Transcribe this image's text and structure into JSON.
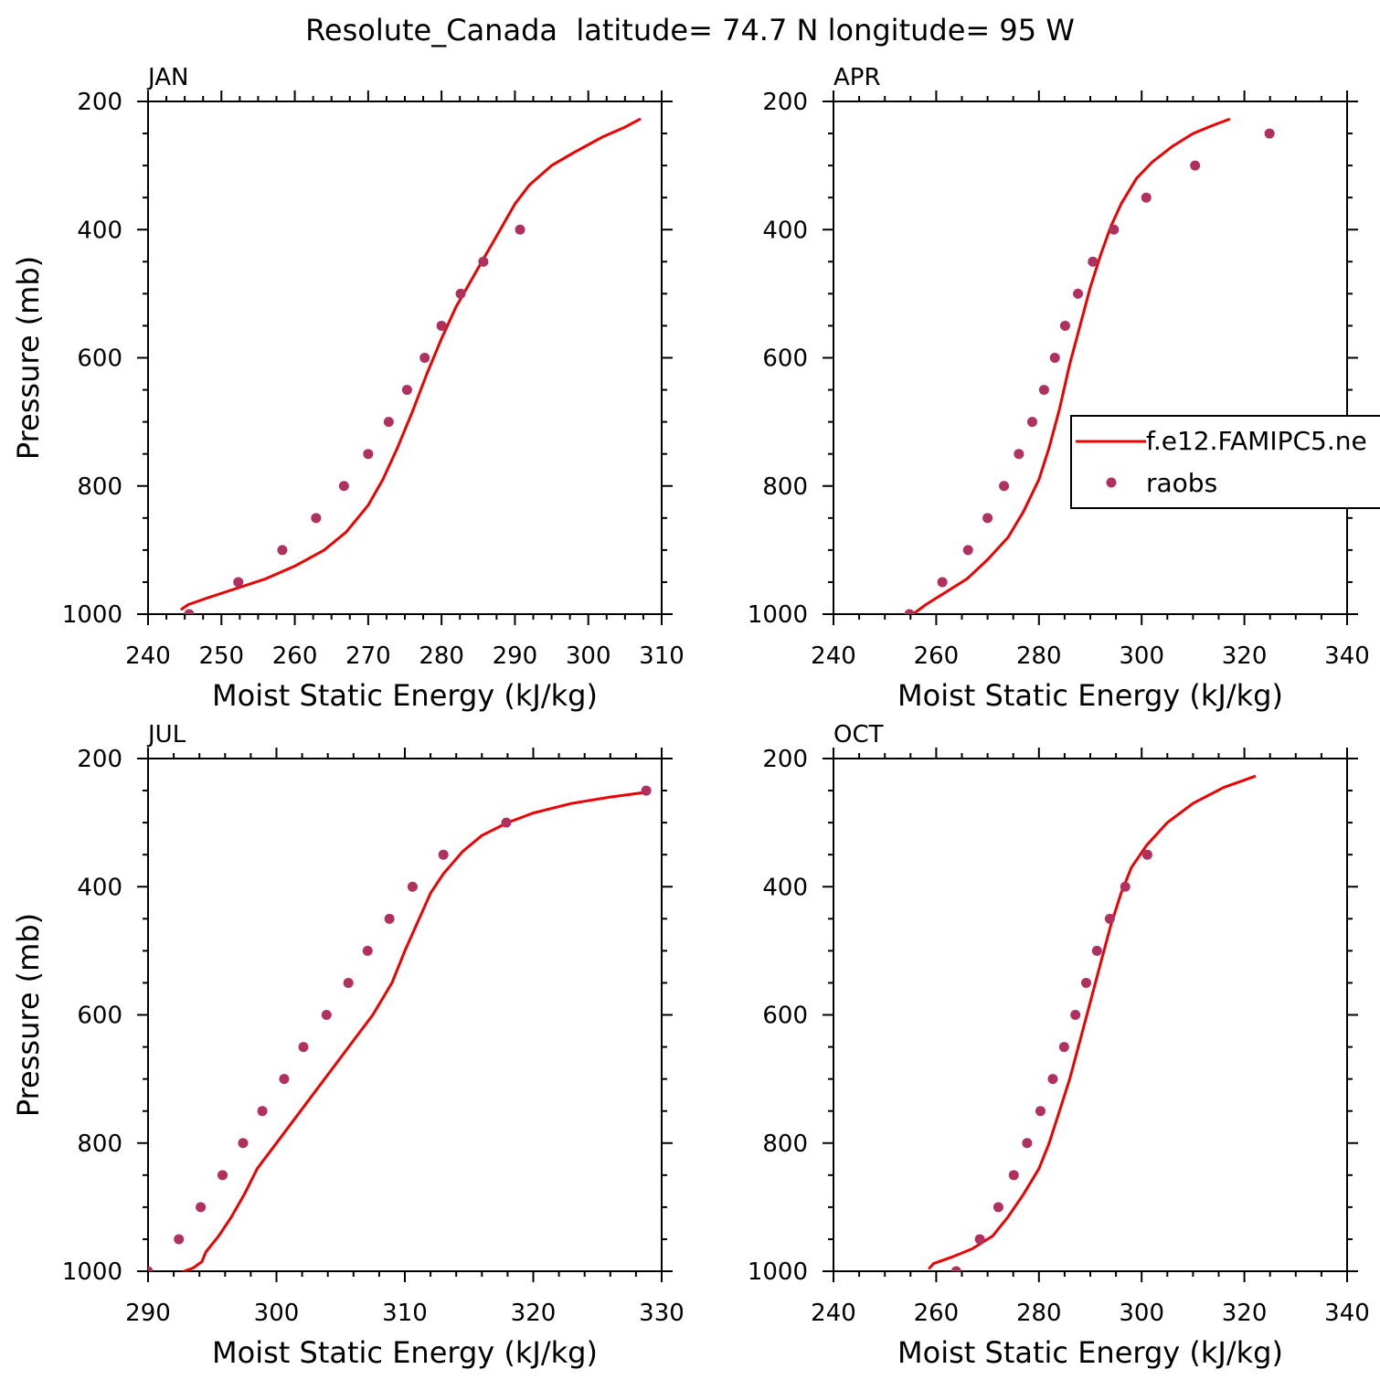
{
  "figure": {
    "title": "Resolute_Canada  latitude= 74.7 N longitude= 95 W",
    "legend": {
      "placement": "right-middle",
      "entries": [
        {
          "label": "f.e12.FAMIPC5.ne",
          "style": "line",
          "color": "#ee0000"
        },
        {
          "label": "raobs",
          "style": "marker",
          "color": "#b03060"
        }
      ]
    }
  },
  "colors": {
    "model_line": "#ee0000",
    "obs_marker": "#b03060",
    "axis": "#000000"
  },
  "chart_data": [
    {
      "type": "line",
      "panel_label": "JAN",
      "xlabel": "Moist Static Energy (kJ/kg)",
      "ylabel": "Pressure (mb)",
      "xlim": [
        240,
        310
      ],
      "ylim": [
        1000,
        200
      ],
      "x_ticks": [
        240,
        250,
        260,
        270,
        280,
        290,
        300,
        310
      ],
      "y_ticks": [
        200,
        400,
        600,
        800,
        1000
      ],
      "series": [
        {
          "name": "f.e12.FAMIPC5.ne",
          "style": "line",
          "points": [
            [
              244.6,
              992
            ],
            [
              245.5,
              985
            ],
            [
              248,
              975
            ],
            [
              252,
              960
            ],
            [
              256,
              945
            ],
            [
              260,
              925
            ],
            [
              264,
              900
            ],
            [
              267,
              872
            ],
            [
              270,
              830
            ],
            [
              272,
              790
            ],
            [
              274,
              740
            ],
            [
              276,
              685
            ],
            [
              278,
              625
            ],
            [
              280,
              570
            ],
            [
              282,
              520
            ],
            [
              284,
              480
            ],
            [
              286,
              440
            ],
            [
              288,
              400
            ],
            [
              290,
              360
            ],
            [
              292,
              330
            ],
            [
              295,
              300
            ],
            [
              298,
              280
            ],
            [
              302,
              255
            ],
            [
              305,
              240
            ],
            [
              307,
              228
            ]
          ]
        },
        {
          "name": "raobs",
          "style": "marker",
          "points": [
            [
              245.6,
              1000
            ],
            [
              252.3,
              950
            ],
            [
              258.3,
              900
            ],
            [
              262.9,
              850
            ],
            [
              266.7,
              800
            ],
            [
              270,
              750
            ],
            [
              272.8,
              700
            ],
            [
              275.3,
              650
            ],
            [
              277.7,
              600
            ],
            [
              280,
              550
            ],
            [
              282.6,
              500
            ],
            [
              285.7,
              450
            ],
            [
              290.7,
              400
            ]
          ]
        }
      ]
    },
    {
      "type": "line",
      "panel_label": "APR",
      "xlabel": "Moist Static Energy (kJ/kg)",
      "ylabel": "",
      "xlim": [
        240,
        340
      ],
      "ylim": [
        1000,
        200
      ],
      "x_ticks": [
        240,
        260,
        280,
        300,
        320,
        340
      ],
      "y_ticks": [
        200,
        400,
        600,
        800,
        1000
      ],
      "series": [
        {
          "name": "f.e12.FAMIPC5.ne",
          "style": "line",
          "points": [
            [
              255.5,
              1000
            ],
            [
              258,
              985
            ],
            [
              262,
              965
            ],
            [
              266,
              945
            ],
            [
              270,
              915
            ],
            [
              274,
              880
            ],
            [
              277,
              840
            ],
            [
              280,
              790
            ],
            [
              282,
              740
            ],
            [
              284,
              680
            ],
            [
              286,
              610
            ],
            [
              288,
              550
            ],
            [
              290,
              490
            ],
            [
              292,
              440
            ],
            [
              294,
              395
            ],
            [
              296,
              360
            ],
            [
              299,
              320
            ],
            [
              302,
              295
            ],
            [
              306,
              270
            ],
            [
              310,
              250
            ],
            [
              314,
              237
            ],
            [
              317,
              228
            ]
          ]
        },
        {
          "name": "raobs",
          "style": "marker",
          "points": [
            [
              254.8,
              1000
            ],
            [
              261.2,
              950
            ],
            [
              266.2,
              900
            ],
            [
              270,
              850
            ],
            [
              273.2,
              800
            ],
            [
              276.1,
              750
            ],
            [
              278.7,
              700
            ],
            [
              281,
              650
            ],
            [
              283.1,
              600
            ],
            [
              285.1,
              550
            ],
            [
              287.6,
              500
            ],
            [
              290.5,
              450
            ],
            [
              294.6,
              400
            ],
            [
              300.9,
              350
            ],
            [
              310.4,
              300
            ],
            [
              324.9,
              250
            ]
          ]
        }
      ]
    },
    {
      "type": "line",
      "panel_label": "JUL",
      "xlabel": "Moist Static Energy (kJ/kg)",
      "ylabel": "Pressure (mb)",
      "xlim": [
        290,
        330
      ],
      "ylim": [
        1000,
        200
      ],
      "x_ticks": [
        290,
        300,
        310,
        320,
        330
      ],
      "y_ticks": [
        200,
        400,
        600,
        800,
        1000
      ],
      "series": [
        {
          "name": "f.e12.FAMIPC5.ne",
          "style": "line",
          "points": [
            [
              292.8,
              1000
            ],
            [
              293.5,
              995
            ],
            [
              294.2,
              985
            ],
            [
              294.5,
              970
            ],
            [
              295.5,
              945
            ],
            [
              296.5,
              915
            ],
            [
              297.5,
              880
            ],
            [
              298.5,
              840
            ],
            [
              300,
              800
            ],
            [
              301.5,
              760
            ],
            [
              303,
              720
            ],
            [
              304.5,
              680
            ],
            [
              306,
              640
            ],
            [
              307.5,
              600
            ],
            [
              309,
              550
            ],
            [
              310,
              500
            ],
            [
              311,
              455
            ],
            [
              312,
              410
            ],
            [
              313,
              380
            ],
            [
              314.5,
              345
            ],
            [
              316,
              320
            ],
            [
              318,
              300
            ],
            [
              320,
              285
            ],
            [
              323,
              270
            ],
            [
              326,
              260
            ],
            [
              329,
              252
            ]
          ]
        },
        {
          "name": "raobs",
          "style": "marker",
          "points": [
            [
              290,
              1000
            ],
            [
              292.4,
              950
            ],
            [
              294.1,
              900
            ],
            [
              295.8,
              850
            ],
            [
              297.4,
              800
            ],
            [
              298.9,
              750
            ],
            [
              300.6,
              700
            ],
            [
              302.1,
              650
            ],
            [
              303.9,
              600
            ],
            [
              305.6,
              550
            ],
            [
              307.1,
              500
            ],
            [
              308.8,
              450
            ],
            [
              310.6,
              400
            ],
            [
              313,
              350
            ],
            [
              317.9,
              300
            ],
            [
              328.8,
              250
            ]
          ]
        }
      ]
    },
    {
      "type": "line",
      "panel_label": "OCT",
      "xlabel": "Moist Static Energy (kJ/kg)",
      "ylabel": "",
      "xlim": [
        240,
        340
      ],
      "ylim": [
        1000,
        200
      ],
      "x_ticks": [
        240,
        260,
        280,
        300,
        320,
        340
      ],
      "y_ticks": [
        200,
        400,
        600,
        800,
        1000
      ],
      "series": [
        {
          "name": "f.e12.FAMIPC5.ne",
          "style": "line",
          "points": [
            [
              258.7,
              995
            ],
            [
              259.5,
              988
            ],
            [
              263,
              978
            ],
            [
              267,
              965
            ],
            [
              271,
              945
            ],
            [
              274,
              915
            ],
            [
              277,
              880
            ],
            [
              280,
              840
            ],
            [
              282,
              800
            ],
            [
              284,
              750
            ],
            [
              286,
              700
            ],
            [
              288,
              640
            ],
            [
              290,
              580
            ],
            [
              292,
              520
            ],
            [
              294,
              460
            ],
            [
              296,
              410
            ],
            [
              298,
              370
            ],
            [
              301,
              335
            ],
            [
              305,
              300
            ],
            [
              310,
              270
            ],
            [
              316,
              245
            ],
            [
              322,
              228
            ]
          ]
        },
        {
          "name": "raobs",
          "style": "marker",
          "points": [
            [
              263.9,
              1000
            ],
            [
              268.5,
              950
            ],
            [
              272.1,
              900
            ],
            [
              275.1,
              850
            ],
            [
              277.7,
              800
            ],
            [
              280.3,
              750
            ],
            [
              282.7,
              700
            ],
            [
              284.9,
              650
            ],
            [
              287.1,
              600
            ],
            [
              289.2,
              550
            ],
            [
              291.3,
              500
            ],
            [
              293.8,
              450
            ],
            [
              296.8,
              400
            ],
            [
              301.1,
              350
            ]
          ]
        }
      ]
    }
  ]
}
